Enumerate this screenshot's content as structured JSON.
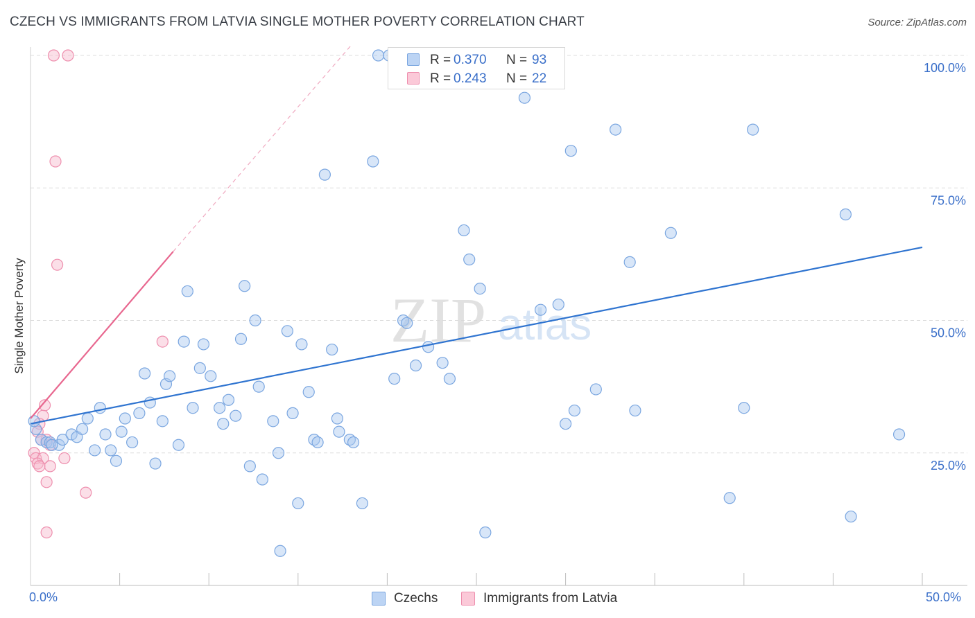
{
  "title": "CZECH VS IMMIGRANTS FROM LATVIA SINGLE MOTHER POVERTY CORRELATION CHART",
  "source": "Source: ZipAtlas.com",
  "watermark": {
    "zip": "ZIP",
    "atlas": "atlas"
  },
  "legend": {
    "rows": [
      {
        "r_label": "R =",
        "r_value": "0.370",
        "n_label": "N =",
        "n_value": "93"
      },
      {
        "r_label": "R =",
        "r_value": "0.243",
        "n_label": "N =",
        "n_value": "22"
      }
    ]
  },
  "bottom_legend": {
    "czechs": "Czechs",
    "latvia": "Immigrants from Latvia"
  },
  "colors": {
    "czech_fill": "#a9c8f0",
    "czech_stroke": "#7aa6e0",
    "czech_line": "#2f74d0",
    "latvia_fill": "#f7b8cb",
    "latvia_stroke": "#ee8fae",
    "latvia_line": "#e8678f",
    "axis_text": "#3a6fc9",
    "grid": "#dcdcdc"
  },
  "chart_data": {
    "type": "scatter",
    "title": "CZECH VS IMMIGRANTS FROM LATVIA SINGLE MOTHER POVERTY CORRELATION CHART",
    "xlabel": "",
    "ylabel": "Single Mother Poverty",
    "xlim": [
      0,
      50
    ],
    "ylim": [
      0,
      105
    ],
    "x_tick_labels": [
      "0.0%",
      "50.0%"
    ],
    "y_ticks": [
      25,
      50,
      75,
      100
    ],
    "y_tick_labels": [
      "25.0%",
      "50.0%",
      "75.0%",
      "100.0%"
    ],
    "grid": true,
    "series": [
      {
        "name": "Czechs",
        "R": 0.37,
        "N": 93,
        "trend": {
          "x": [
            0,
            50
          ],
          "y": [
            30.5,
            63.8
          ]
        },
        "points": [
          [
            0.3,
            29.5
          ],
          [
            0.6,
            27.5
          ],
          [
            0.9,
            27.0
          ],
          [
            1.1,
            27.0
          ],
          [
            1.6,
            26.5
          ],
          [
            1.8,
            27.5
          ],
          [
            2.3,
            28.5
          ],
          [
            2.6,
            28.0
          ],
          [
            2.9,
            29.5
          ],
          [
            3.2,
            31.5
          ],
          [
            3.6,
            25.5
          ],
          [
            3.9,
            33.5
          ],
          [
            4.2,
            28.5
          ],
          [
            4.5,
            25.5
          ],
          [
            4.8,
            23.5
          ],
          [
            5.1,
            29.0
          ],
          [
            5.3,
            31.5
          ],
          [
            5.7,
            27.0
          ],
          [
            6.1,
            32.5
          ],
          [
            6.4,
            40.0
          ],
          [
            6.7,
            34.5
          ],
          [
            7.0,
            23.0
          ],
          [
            7.4,
            31.0
          ],
          [
            7.6,
            38.0
          ],
          [
            7.8,
            39.5
          ],
          [
            8.3,
            26.5
          ],
          [
            8.6,
            46.0
          ],
          [
            8.8,
            55.5
          ],
          [
            9.1,
            33.5
          ],
          [
            9.5,
            41.0
          ],
          [
            9.7,
            45.5
          ],
          [
            10.1,
            39.5
          ],
          [
            10.6,
            33.5
          ],
          [
            10.8,
            30.5
          ],
          [
            11.1,
            35.0
          ],
          [
            11.5,
            32.0
          ],
          [
            11.8,
            46.5
          ],
          [
            12.0,
            56.5
          ],
          [
            12.3,
            22.5
          ],
          [
            12.6,
            50.0
          ],
          [
            12.8,
            37.5
          ],
          [
            13.0,
            20.0
          ],
          [
            13.6,
            31.0
          ],
          [
            13.9,
            25.0
          ],
          [
            14.0,
            6.5
          ],
          [
            14.4,
            48.0
          ],
          [
            14.7,
            32.5
          ],
          [
            15.0,
            15.5
          ],
          [
            15.2,
            45.5
          ],
          [
            15.6,
            36.5
          ],
          [
            15.9,
            27.5
          ],
          [
            16.1,
            27.0
          ],
          [
            16.5,
            77.5
          ],
          [
            16.9,
            44.5
          ],
          [
            17.2,
            31.5
          ],
          [
            17.3,
            29.0
          ],
          [
            17.9,
            27.5
          ],
          [
            18.1,
            27.0
          ],
          [
            18.6,
            15.5
          ],
          [
            19.2,
            80.0
          ],
          [
            19.5,
            100.0
          ],
          [
            20.1,
            100.0
          ],
          [
            20.4,
            39.0
          ],
          [
            20.9,
            50.0
          ],
          [
            21.1,
            49.5
          ],
          [
            21.6,
            41.5
          ],
          [
            22.3,
            45.0
          ],
          [
            23.1,
            42.0
          ],
          [
            23.5,
            39.0
          ],
          [
            23.9,
            100.0
          ],
          [
            24.3,
            67.0
          ],
          [
            24.6,
            61.5
          ],
          [
            25.2,
            56.0
          ],
          [
            25.5,
            10.0
          ],
          [
            27.7,
            92.0
          ],
          [
            28.6,
            52.0
          ],
          [
            29.6,
            53.0
          ],
          [
            30.0,
            30.5
          ],
          [
            30.3,
            82.0
          ],
          [
            30.5,
            33.0
          ],
          [
            31.7,
            37.0
          ],
          [
            32.8,
            86.0
          ],
          [
            33.6,
            61.0
          ],
          [
            33.9,
            33.0
          ],
          [
            35.9,
            66.5
          ],
          [
            39.2,
            16.5
          ],
          [
            40.0,
            33.5
          ],
          [
            40.5,
            86.0
          ],
          [
            45.7,
            70.0
          ],
          [
            46.0,
            13.0
          ],
          [
            48.7,
            28.5
          ],
          [
            0.2,
            31.0
          ],
          [
            1.2,
            26.5
          ]
        ]
      },
      {
        "name": "Immigrants from Latvia",
        "R": 0.243,
        "N": 22,
        "trend": {
          "x": [
            0,
            8.0
          ],
          "y": [
            31.5,
            63.0
          ]
        },
        "trend_dashed": {
          "x": [
            8.0,
            18.0
          ],
          "y": [
            63.0,
            102.0
          ]
        },
        "points": [
          [
            1.3,
            100.0
          ],
          [
            2.1,
            100.0
          ],
          [
            1.4,
            80.0
          ],
          [
            1.5,
            60.5
          ],
          [
            7.4,
            46.0
          ],
          [
            0.8,
            34.0
          ],
          [
            0.7,
            32.0
          ],
          [
            0.5,
            30.5
          ],
          [
            0.4,
            29.0
          ],
          [
            0.9,
            27.5
          ],
          [
            0.6,
            27.5
          ],
          [
            1.1,
            26.5
          ],
          [
            0.2,
            25.0
          ],
          [
            0.3,
            24.0
          ],
          [
            0.7,
            24.0
          ],
          [
            1.9,
            24.0
          ],
          [
            0.4,
            23.0
          ],
          [
            1.1,
            22.5
          ],
          [
            0.5,
            22.5
          ],
          [
            0.9,
            19.5
          ],
          [
            3.1,
            17.5
          ],
          [
            0.9,
            10.0
          ]
        ]
      }
    ]
  }
}
